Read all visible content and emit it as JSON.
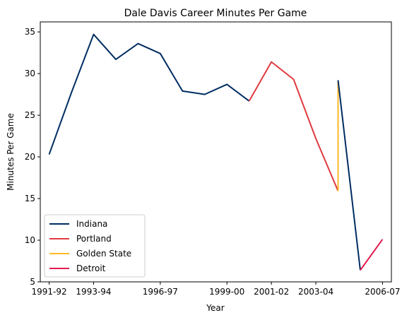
{
  "chart_data": {
    "type": "line",
    "title": "Dale Davis  Career Minutes Per Game",
    "xlabel": "Year",
    "ylabel": "Minutes Per Game",
    "x_ticks": [
      "1991-92",
      "1993-94",
      "1996-97",
      "1999-00",
      "2001-02",
      "2003-04",
      "2006-07"
    ],
    "xlim": [
      1991.6,
      2007.4
    ],
    "ylim": [
      5,
      36.2
    ],
    "y_ticks": [
      5,
      10,
      15,
      20,
      25,
      30,
      35
    ],
    "grid": false,
    "legend_position": "lower-left",
    "series": [
      {
        "name": "Indiana",
        "color": "#002D62",
        "points": [
          {
            "x": 1992,
            "y": 20.3
          },
          {
            "x": 1993,
            "y": 27.7
          },
          {
            "x": 1994,
            "y": 34.7
          },
          {
            "x": 1995,
            "y": 31.7
          },
          {
            "x": 1996,
            "y": 33.6
          },
          {
            "x": 1997,
            "y": 32.4
          },
          {
            "x": 1998,
            "y": 27.9
          },
          {
            "x": 1999,
            "y": 27.5
          },
          {
            "x": 2000,
            "y": 28.7
          },
          {
            "x": 2001,
            "y": 26.7
          }
        ]
      },
      {
        "name": "Portland",
        "color": "#E03A3E",
        "points": [
          {
            "x": 2001,
            "y": 26.7
          },
          {
            "x": 2002,
            "y": 31.4
          },
          {
            "x": 2003,
            "y": 29.3
          },
          {
            "x": 2004,
            "y": 22.2
          },
          {
            "x": 2005,
            "y": 15.9
          }
        ]
      },
      {
        "name": "Golden State",
        "color": "#FDB927",
        "points": [
          {
            "x": 2005,
            "y": 15.9
          },
          {
            "x": 2005,
            "y": 29.2
          }
        ]
      },
      {
        "name": "Indiana",
        "color": "#002D62",
        "show_in_legend": false,
        "points": [
          {
            "x": 2005,
            "y": 29.2
          },
          {
            "x": 2006,
            "y": 6.4
          }
        ]
      },
      {
        "name": "Detroit",
        "color": "#E31B4F",
        "points": [
          {
            "x": 2006,
            "y": 6.4
          },
          {
            "x": 2007,
            "y": 10.1
          }
        ]
      }
    ]
  }
}
